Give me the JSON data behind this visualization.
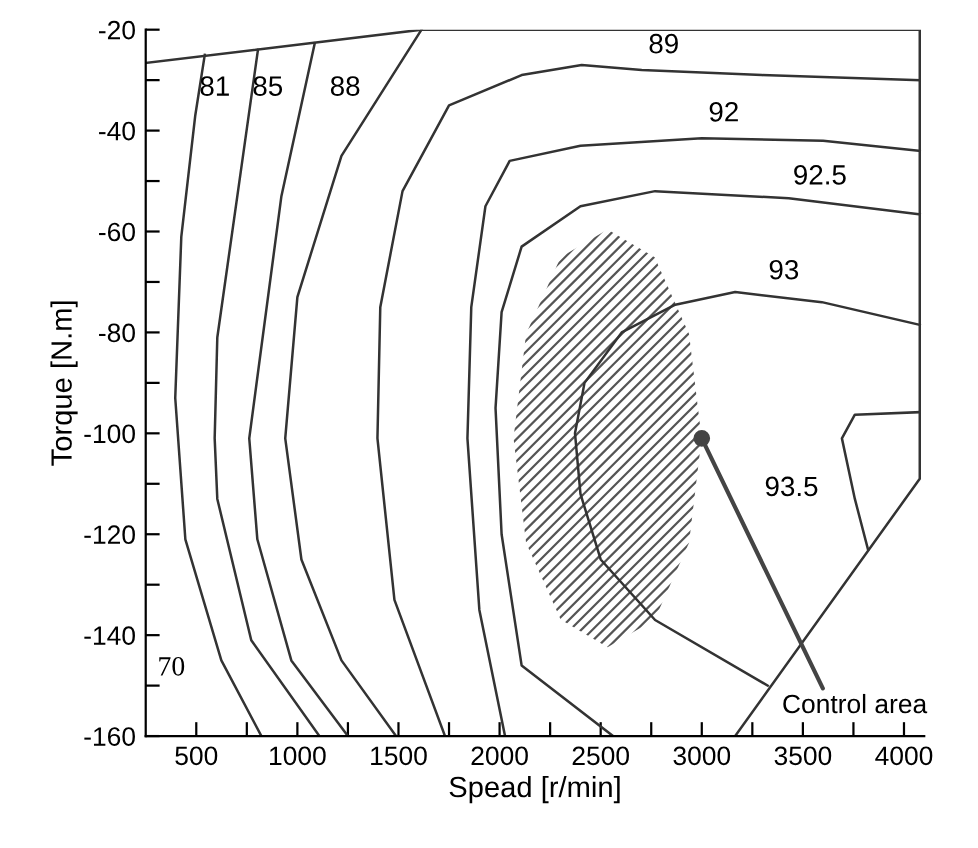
{
  "chart_data": {
    "type": "line",
    "xlabel": "Spead [r/min]",
    "ylabel": "Torque [N.m]",
    "xlim": [
      250,
      4100
    ],
    "ylim": [
      -160,
      -20
    ],
    "xticks": [
      500,
      {
        "value": 750,
        "label": null
      },
      1000,
      {
        "value": 1250,
        "label": null
      },
      1500,
      {
        "value": 1750,
        "label": null
      },
      2000,
      {
        "value": 2250,
        "label": null
      },
      2500,
      {
        "value": 2750,
        "label": null
      },
      3000,
      {
        "value": 3250,
        "label": null
      },
      3500,
      {
        "value": 3750,
        "label": null
      },
      4000
    ],
    "yticks": [
      -20,
      {
        "value": -30,
        "label": null
      },
      -40,
      {
        "value": -50,
        "label": null
      },
      -60,
      {
        "value": -70,
        "label": null
      },
      -80,
      {
        "value": -90,
        "label": null
      },
      -100,
      {
        "value": -110,
        "label": null
      },
      -120,
      {
        "value": -130,
        "label": null
      },
      -140,
      {
        "value": -150,
        "label": null
      },
      -160
    ],
    "series": [
      {
        "color": "#333333",
        "x": [
          250,
          1614,
          4078,
          4078,
          3165
        ],
        "values": [
          -26.6,
          -20,
          -20,
          -109,
          -160
        ]
      },
      {
        "color": "#333333",
        "x": [
          542,
          495,
          426,
          396,
          446,
          624,
          822
        ],
        "values": [
          -25,
          -37,
          -61,
          -93,
          -121,
          -145,
          -160
        ]
      },
      {
        "color": "#333333",
        "x": [
          805,
          703,
          604,
          591,
          604,
          772,
          1109
        ],
        "values": [
          -24,
          -53,
          -81,
          -101,
          -113,
          -141,
          -160
        ]
      },
      {
        "color": "#333333",
        "x": [
          1086,
          921,
          762,
          802,
          970,
          1250
        ],
        "values": [
          -22.7,
          -53,
          -101,
          -121,
          -145,
          -160
        ]
      },
      {
        "color": "#333333",
        "x": [
          1614,
          1218,
          1000,
          940,
          1020,
          1218,
          1488
        ],
        "values": [
          -20,
          -45,
          -73,
          -101,
          -125,
          -145,
          -160
        ]
      },
      {
        "color": "#333333",
        "x": [
          1730,
          1480,
          1396,
          1410,
          1520,
          1750,
          2109,
          2406,
          2703,
          3297,
          4078
        ],
        "values": [
          -160,
          -133,
          -101,
          -75,
          -52,
          -35,
          -29,
          -27,
          -28,
          -29,
          -30
        ]
      },
      {
        "color": "#333333",
        "x": [
          2027,
          1900,
          1841,
          1860,
          1930,
          2050,
          2400,
          3000,
          3600,
          4078
        ],
        "values": [
          -160,
          -135,
          -101,
          -75,
          -55,
          -46,
          -43,
          -41.5,
          -42,
          -44
        ]
      },
      {
        "color": "#333333",
        "x": [
          2561,
          2109,
          2010,
          1980,
          2010,
          2109,
          2400,
          2769,
          3430,
          4078
        ],
        "values": [
          -160,
          -146,
          -120,
          -95,
          -76,
          -63,
          -55,
          -52,
          -53.4,
          -56.6
        ]
      },
      {
        "color": "#333333",
        "x": [
          4078,
          3594,
          3165,
          2869,
          2604,
          2420,
          2373,
          2400,
          2500,
          2769,
          3326
        ],
        "values": [
          -78.5,
          -74,
          -72,
          -74.5,
          -80,
          -90,
          -100,
          -112,
          -125,
          -137,
          -150
        ]
      },
      {
        "color": "#333333",
        "x": [
          4078,
          3757,
          3693,
          3757,
          3822
        ],
        "values": [
          -95.8,
          -96.3,
          -101,
          -113,
          -123
        ]
      },
      {
        "type": "area",
        "color": "#555555",
        "x": [
          2999,
          2937,
          2767,
          2534,
          2302,
          2131,
          2069,
          2131,
          2302,
          2534,
          2767,
          2937
        ],
        "values": [
          -101,
          -80.3,
          -65.1,
          -59.6,
          -65.1,
          -80.3,
          -101,
          -121.7,
          -136.9,
          -142.4,
          -136.9,
          -121.7
        ]
      }
    ],
    "annotations": [
      {
        "text": "81",
        "x": 784,
        "y": -30
      },
      {
        "text": "85",
        "x": 1046,
        "y": -30
      },
      {
        "text": "88",
        "x": 1456,
        "y": -30
      },
      {
        "text": "89",
        "x": 2812,
        "y": -28.2
      },
      {
        "text": "92",
        "x": 3109,
        "y": -41.7
      },
      {
        "text": "92.5",
        "x": 3584,
        "y": -54.2
      },
      {
        "text": "93",
        "x": 3406,
        "y": -73
      },
      {
        "text": "93.5",
        "x": 3746,
        "y": -111
      },
      {
        "text": "70",
        "x": 624,
        "y": -145
      },
      {
        "text": "Control area",
        "x": 3000,
        "y": -101
      }
    ]
  }
}
